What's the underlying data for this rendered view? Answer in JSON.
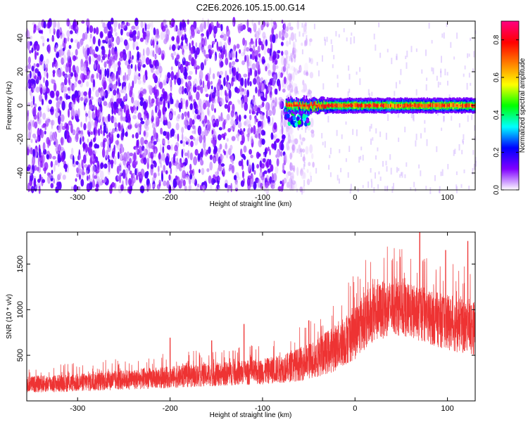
{
  "figure": {
    "title": "C2E6.2026.105.15.00.G14"
  },
  "colors": {
    "snr_line": "#ee3333",
    "axis": "#000000"
  },
  "chart_data": [
    {
      "type": "heatmap",
      "title": "",
      "xlabel": "Height of straight line (km)",
      "ylabel": "Frequency (Hz)",
      "xlim": [
        -355,
        130
      ],
      "ylim": [
        -50,
        50
      ],
      "xticks": [
        -300,
        -200,
        -100,
        0,
        100
      ],
      "yticks": [
        -40,
        -20,
        0,
        20,
        40
      ],
      "colorbar": {
        "label": "Normalized spectral amplitude",
        "range": [
          0,
          0.9
        ],
        "ticks": [
          "0.0",
          "0.2",
          "0.4",
          "0.6",
          "0.8"
        ],
        "colormap": [
          "#ffffff",
          "#8000ff",
          "#0000ff",
          "#00ffff",
          "#00ff00",
          "#ffff00",
          "#ff8000",
          "#ff0000",
          "#ff0080"
        ]
      },
      "noise_region": {
        "x_range": [
          -355,
          -75
        ],
        "amplitude": 0.15
      },
      "signal_band": {
        "x_range": [
          -75,
          130
        ],
        "center_frequency": 0,
        "peak_amplitude": 0.85,
        "disturbance": {
          "x_range": [
            -75,
            -50
          ],
          "freq_range": [
            -12,
            2
          ]
        }
      }
    },
    {
      "type": "line",
      "title": "",
      "xlabel": "Height of straight line (km)",
      "ylabel": "SNR (10 * v/v)",
      "xlim": [
        -355,
        130
      ],
      "ylim": [
        0,
        1850
      ],
      "xticks": [
        -300,
        -200,
        -100,
        0,
        100
      ],
      "yticks": [
        500,
        1000,
        1500
      ],
      "envelope": {
        "x": [
          -355,
          -300,
          -250,
          -200,
          -150,
          -100,
          -75,
          -50,
          -25,
          0,
          10,
          20,
          30,
          40,
          50,
          60,
          70,
          80,
          90,
          100,
          110,
          120,
          130
        ],
        "center": [
          180,
          200,
          230,
          260,
          290,
          320,
          360,
          430,
          560,
          750,
          880,
          950,
          1000,
          1020,
          1010,
          980,
          950,
          920,
          890,
          860,
          830,
          810,
          800
        ],
        "spread": [
          90,
          100,
          110,
          120,
          130,
          140,
          160,
          200,
          250,
          300,
          320,
          320,
          320,
          300,
          300,
          300,
          300,
          300,
          300,
          300,
          300,
          300,
          300
        ]
      },
      "peaks": [
        {
          "x": -200,
          "y": 690
        },
        {
          "x": -155,
          "y": 660
        },
        {
          "x": -120,
          "y": 840
        },
        {
          "x": -50,
          "y": 880
        },
        {
          "x": 70,
          "y": 1850
        },
        {
          "x": 98,
          "y": 1650
        },
        {
          "x": 122,
          "y": 1750
        }
      ]
    }
  ]
}
